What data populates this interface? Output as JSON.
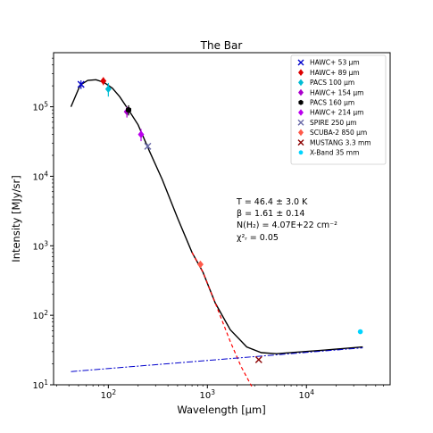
{
  "chart_data": {
    "type": "scatter",
    "title": "The Bar",
    "xlabel": "Wavelength [μm]",
    "ylabel": "Intensity [MJy/sr]",
    "x_scale": "log",
    "y_scale": "log",
    "xlim": [
      28,
      70000
    ],
    "ylim": [
      10,
      600000
    ],
    "x_ticks": [
      {
        "value": 100,
        "base": "10",
        "exp": "2"
      },
      {
        "value": 1000,
        "base": "10",
        "exp": "3"
      },
      {
        "value": 10000,
        "base": "10",
        "exp": "4"
      }
    ],
    "y_ticks": [
      {
        "value": 10,
        "base": "10",
        "exp": "1"
      },
      {
        "value": 100,
        "base": "10",
        "exp": "2"
      },
      {
        "value": 1000,
        "base": "10",
        "exp": "3"
      },
      {
        "value": 10000,
        "base": "10",
        "exp": "4"
      },
      {
        "value": 100000,
        "base": "10",
        "exp": "5"
      }
    ],
    "grid": false,
    "legend_position": "top-right",
    "annotation_lines": [
      "T = 46.4 ± 3.0 K",
      "β = 1.61 ± 0.14",
      "N(H₂) = 4.07E+22 cm⁻²",
      "χ²ᵣ = 0.05"
    ],
    "series": [
      {
        "name": "HAWC+ 53 μm",
        "color": "#0000cc",
        "marker": "x",
        "points": [
          {
            "x": 53,
            "y": 210000,
            "err": 30000
          }
        ]
      },
      {
        "name": "HAWC+ 89 μm",
        "color": "#dd0000",
        "marker": "diamond",
        "points": [
          {
            "x": 89,
            "y": 235000,
            "err": 30000
          }
        ]
      },
      {
        "name": "PACS 100 μm",
        "color": "#00bcd4",
        "marker": "diamond",
        "points": [
          {
            "x": 100,
            "y": 180000,
            "err": 40000
          }
        ]
      },
      {
        "name": "HAWC+ 154 μm",
        "color": "#aa00cc",
        "marker": "diamond",
        "points": [
          {
            "x": 154,
            "y": 85000,
            "err": 15000
          }
        ]
      },
      {
        "name": "PACS 160 μm",
        "color": "#000000",
        "marker": "hexagon",
        "points": [
          {
            "x": 160,
            "y": 90000,
            "err": 15000
          }
        ]
      },
      {
        "name": "HAWC+ 214 μm",
        "color": "#bb00ee",
        "marker": "diamond",
        "points": [
          {
            "x": 214,
            "y": 40000,
            "err": 8000
          }
        ]
      },
      {
        "name": "SPIRE 250 μm",
        "color": "#6a6aa8",
        "marker": "x",
        "points": [
          {
            "x": 250,
            "y": 27000,
            "err": 2000
          }
        ]
      },
      {
        "name": "SCUBA-2 850 μm",
        "color": "#ff5a4a",
        "marker": "diamond",
        "points": [
          {
            "x": 850,
            "y": 540,
            "err": 60
          }
        ]
      },
      {
        "name": "MUSTANG 3.3 mm",
        "color": "#8b0000",
        "marker": "x",
        "points": [
          {
            "x": 3300,
            "y": 23,
            "err": 0
          }
        ]
      },
      {
        "name": "X-Band 35 mm",
        "color": "#00d4ff",
        "marker": "circle",
        "points": [
          {
            "x": 35000,
            "y": 58,
            "err": 0
          }
        ]
      }
    ],
    "model_curves": {
      "dust_total": {
        "color": "#000000",
        "x": [
          42,
          52,
          62,
          75,
          90,
          110,
          130,
          160,
          200,
          260,
          350,
          500,
          700,
          900,
          1200,
          1700,
          2500,
          3500,
          5000,
          8000,
          15000,
          37000
        ],
        "y": [
          100000,
          205000,
          240000,
          245000,
          225000,
          185000,
          140000,
          90000,
          55000,
          23000,
          9000,
          2500,
          800,
          420,
          150,
          62,
          35,
          29,
          28,
          29.5,
          31.5,
          35
        ]
      },
      "dust_only": {
        "color": "#ff0000",
        "x": [
          700,
          900,
          1200,
          1700,
          2200,
          2800
        ],
        "y": [
          800,
          420,
          150,
          42,
          18,
          9.5
        ]
      },
      "free_free": {
        "color": "#0000cc",
        "x": [
          42,
          37000
        ],
        "y": [
          15.5,
          34
        ]
      }
    }
  }
}
